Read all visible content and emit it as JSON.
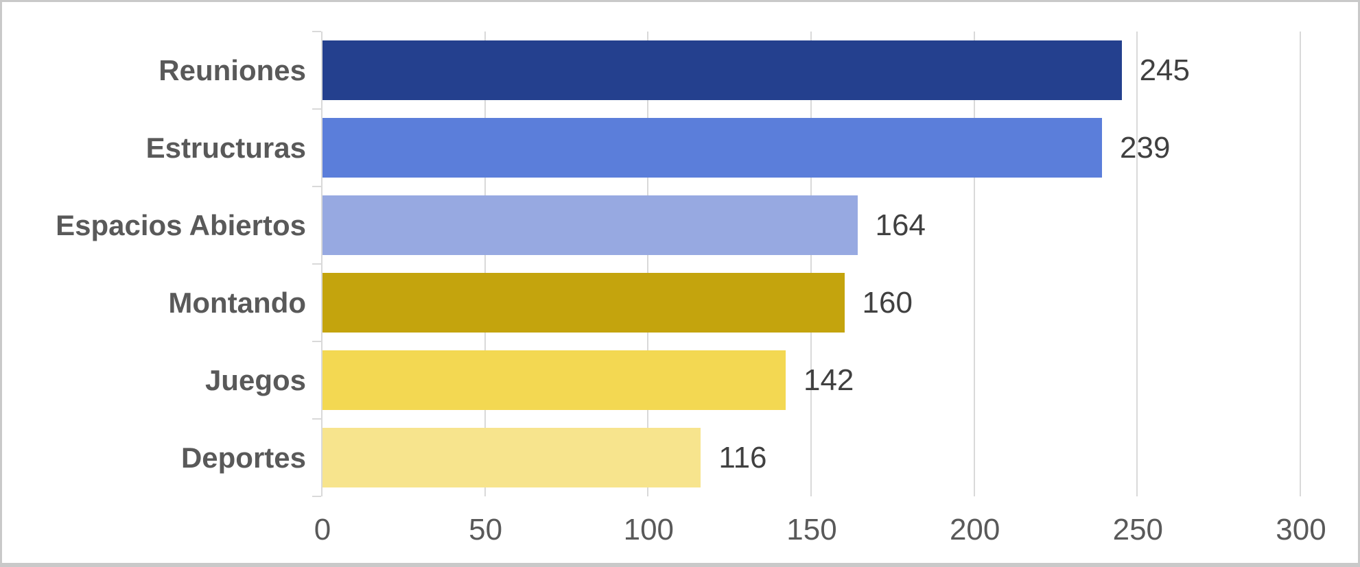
{
  "chart_data": {
    "type": "bar",
    "orientation": "horizontal",
    "categories": [
      "Reuniones",
      "Estructuras",
      "Espacios Abiertos",
      "Montando",
      "Juegos",
      "Deportes"
    ],
    "values": [
      245,
      239,
      164,
      160,
      142,
      116
    ],
    "value_labels": [
      "245",
      "239",
      "164",
      "160",
      "142",
      "116"
    ],
    "bar_colors": [
      "#24408E",
      "#5B7EDA",
      "#97A9E1",
      "#C4A40D",
      "#F3D852",
      "#F7E48D"
    ],
    "x_ticks": [
      0,
      50,
      100,
      150,
      200,
      250,
      300
    ],
    "x_tick_labels": [
      "0",
      "50",
      "100",
      "150",
      "200",
      "250",
      "300"
    ],
    "xlim": [
      0,
      300
    ],
    "grid": "vertical-on",
    "legend": "none",
    "title": "",
    "xlabel": "",
    "ylabel": "",
    "colors": {
      "gridline": "#d9d9d9",
      "axis_line": "#d9d9d9",
      "category_label": "#595959",
      "value_label": "#404040",
      "tick_label": "#595959",
      "frame_border": "#c9c9c9",
      "background": "#ffffff"
    }
  }
}
